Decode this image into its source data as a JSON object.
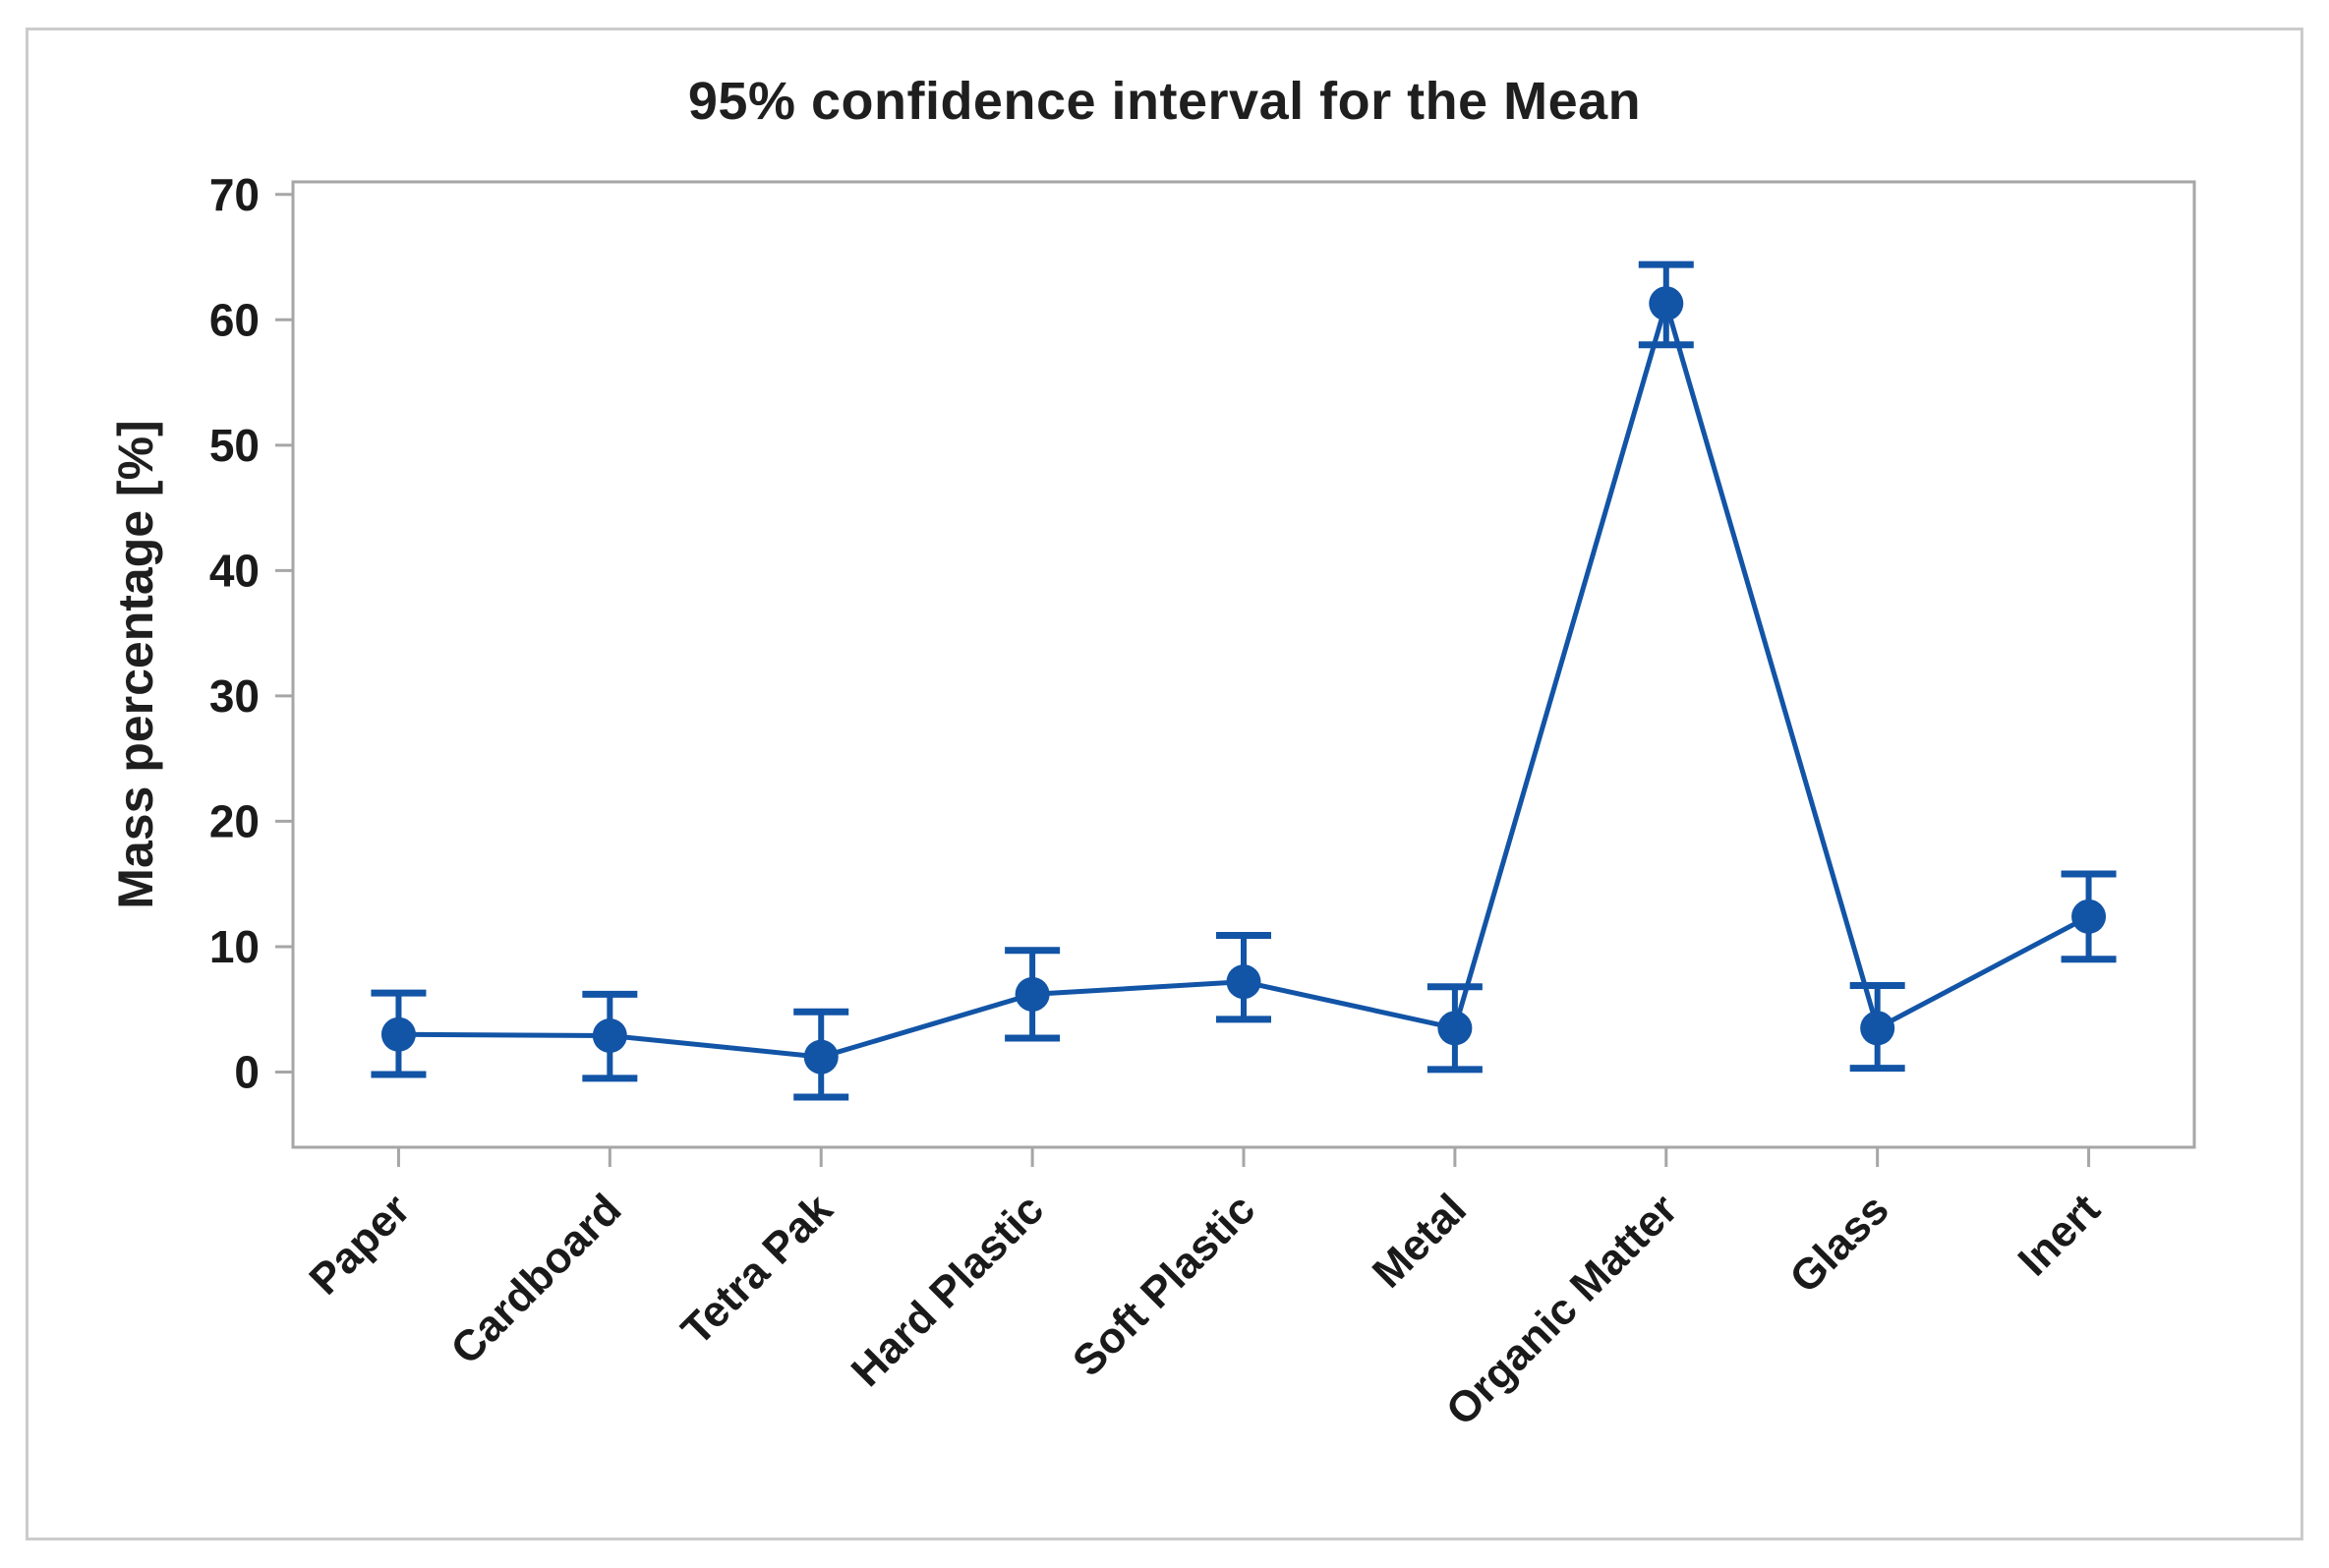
{
  "figure": {
    "title": "95% confidence interval for the Mean",
    "y_axis_label": "Mass percentage [%]"
  },
  "chart_data": {
    "type": "line",
    "title": "95% confidence interval for the Mean",
    "xlabel": "",
    "ylabel": "Mass percentage [%]",
    "categories": [
      "Paper",
      "Cardboard",
      "Tetra Pak",
      "Hard Plastic",
      "Soft Plastic",
      "Metal",
      "Organic Matter",
      "Glass",
      "Inert"
    ],
    "series": [
      {
        "name": "Mean",
        "values": [
          3.0,
          2.9,
          1.2,
          6.2,
          7.2,
          3.5,
          61.3,
          3.5,
          12.4
        ],
        "ci_low": [
          -0.2,
          -0.5,
          -2.0,
          2.7,
          4.2,
          0.2,
          58.0,
          0.3,
          9.0
        ],
        "ci_high": [
          6.3,
          6.2,
          4.8,
          9.7,
          10.9,
          6.8,
          64.4,
          6.9,
          15.8
        ]
      }
    ],
    "error_bar_meaning": "95% confidence interval",
    "ylim": [
      -6,
      71
    ],
    "yticks": [
      0,
      10,
      20,
      30,
      40,
      50,
      60,
      70
    ],
    "grid": false,
    "legend": false,
    "marker": "circle",
    "x_tick_label_rotation": -45,
    "colors": {
      "series": "#1254a6",
      "axis": "#a6a6a6",
      "text": "#1a1a1a",
      "figure_border": "#cbcbcb",
      "background": "#ffffff"
    }
  }
}
